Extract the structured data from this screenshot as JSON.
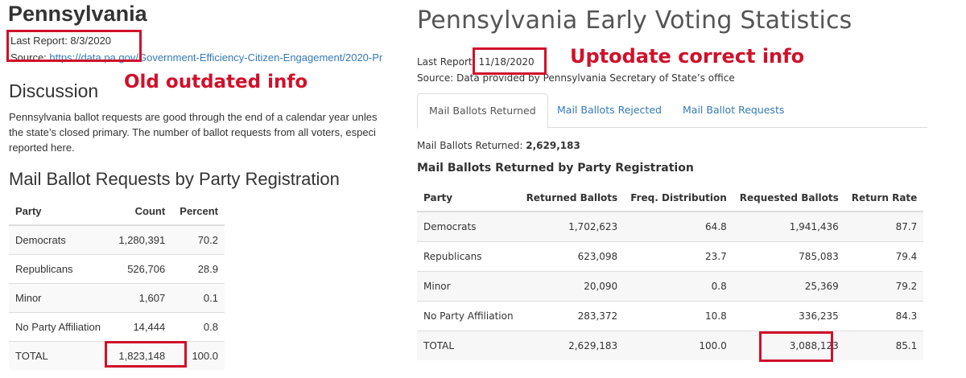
{
  "left": {
    "title": "Pennsylvania",
    "last_report": "Last Report: 8/3/2020",
    "source_label": "Source: ",
    "source_link": "https://data.pa.gov/Government-Efficiency-Citizen-Engagement/2020-Pr",
    "discussion_title": "Discussion",
    "discussion_lines": [
      "Pennsylvania ballot requests are good through the end of a calendar year unles",
      "the state’s closed primary. The number of ballot requests from all voters, especi",
      "reported here."
    ],
    "table_title": "Mail Ballot Requests by Party Registration",
    "columns": [
      "Party",
      "Count",
      "Percent"
    ],
    "rows": [
      [
        "Democrats",
        "1,280,391",
        "70.2"
      ],
      [
        "Republicans",
        "526,706",
        "28.9"
      ],
      [
        "Minor",
        "1,607",
        "0.1"
      ],
      [
        "No Party Affiliation",
        "14,444",
        "0.8"
      ],
      [
        "TOTAL",
        "1,823,148",
        "100.0"
      ]
    ]
  },
  "right": {
    "title": "Pennsylvania Early Voting Statistics",
    "last_report_label": "Last Report: ",
    "last_report_date": "11/18/2020",
    "source": "Source: Data provided by Pennsylvania Secretary of State’s office",
    "tabs": [
      {
        "label": "Mail Ballots Returned",
        "active": true
      },
      {
        "label": "Mail Ballots Rejected",
        "active": false
      },
      {
        "label": "Mail Ballot Requests",
        "active": false
      }
    ],
    "returned_label": "Mail Ballots Returned: ",
    "returned_value": "2,629,183",
    "table_title": "Mail Ballots Returned by Party Registration",
    "columns": [
      "Party",
      "Returned Ballots",
      "Freq. Distribution",
      "Requested Ballots",
      "Return Rate"
    ],
    "rows": [
      [
        "Democrats",
        "1,702,623",
        "64.8",
        "1,941,436",
        "87.7"
      ],
      [
        "Republicans",
        "623,098",
        "23.7",
        "785,083",
        "79.4"
      ],
      [
        "Minor",
        "20,090",
        "0.8",
        "25,369",
        "79.2"
      ],
      [
        "No Party Affiliation",
        "283,372",
        "10.8",
        "336,235",
        "84.3"
      ],
      [
        "TOTAL",
        "2,629,183",
        "100.0",
        "3,088,123",
        "85.1"
      ]
    ]
  },
  "annotations": {
    "old_label": "Old outdated info",
    "new_label": "Uptodate correct info",
    "color": "#d0102a"
  },
  "colors": {
    "link": "#337ab7",
    "text": "#333333",
    "border": "#dddddd"
  }
}
